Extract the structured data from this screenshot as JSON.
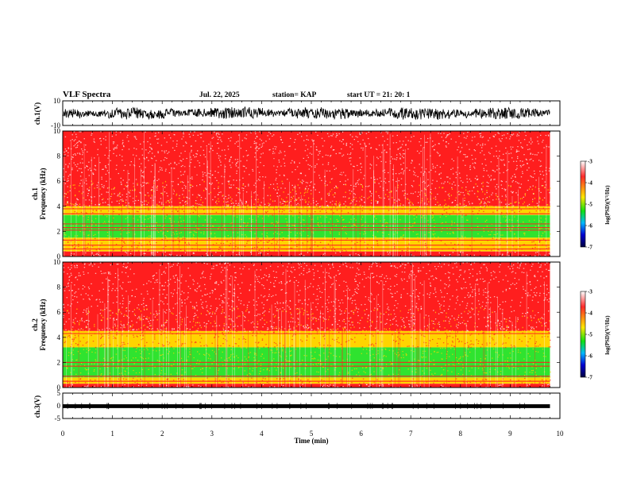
{
  "header": {
    "title": "VLF Spectra",
    "date": "Jul. 22, 2025",
    "station": "station= KAP",
    "start_ut": "start UT =  21: 20: 1"
  },
  "colors": {
    "spec_hi": "#ff1e1e",
    "spec_mid": "#ffd400",
    "spec_lo": "#2fe32f",
    "trace": "#000000",
    "frame": "#000000",
    "colorbar_stops": [
      "#ffffff",
      "#ff0000",
      "#ffee00",
      "#00e000",
      "#00c0ff",
      "#0000d0",
      "#000050"
    ]
  },
  "chart_data": [
    {
      "type": "line",
      "name": "ch1-waveform",
      "ylabel": "ch.1(V)",
      "ylim": [
        -10,
        10
      ],
      "yticks": [
        10,
        -10
      ],
      "xlim": [
        0,
        10
      ],
      "description_values": "noisy waveform between about -8 V and +8 V, ending near 9.8 min"
    },
    {
      "type": "heatmap",
      "name": "ch1-spectrogram",
      "ylabel_line1": "ch.1",
      "ylabel_line2": "Frequency (kHz)",
      "ylim": [
        0,
        10
      ],
      "yticks": [
        0,
        2,
        4,
        6,
        8,
        10
      ],
      "xlim": [
        0,
        10
      ],
      "data_end_min": 9.8,
      "bands_khz": [
        {
          "from": 4.0,
          "to": 10.0,
          "level": "high"
        },
        {
          "from": 3.3,
          "to": 4.0,
          "level": "mid"
        },
        {
          "from": 1.5,
          "to": 3.3,
          "level": "low"
        },
        {
          "from": 0.4,
          "to": 1.5,
          "level": "mid"
        },
        {
          "from": 0.0,
          "to": 0.4,
          "level": "high"
        }
      ],
      "lines_khz": [
        3.8,
        3.4,
        2.6,
        2.3,
        2.1,
        1.3,
        0.9,
        0.6
      ],
      "colorbar": {
        "label": "log(PSD)(V²/Hz)",
        "range": [
          -7,
          -3
        ],
        "ticks": [
          -3,
          -4,
          -5,
          -6,
          -7
        ]
      }
    },
    {
      "type": "heatmap",
      "name": "ch2-spectrogram",
      "ylabel_line1": "ch.2",
      "ylabel_line2": "Frequency (kHz)",
      "ylim": [
        0,
        10
      ],
      "yticks": [
        0,
        2,
        4,
        6,
        8,
        10
      ],
      "xlim": [
        0,
        10
      ],
      "data_end_min": 9.8,
      "bands_khz": [
        {
          "from": 4.5,
          "to": 10.0,
          "level": "high"
        },
        {
          "from": 3.2,
          "to": 4.5,
          "level": "mid"
        },
        {
          "from": 0.8,
          "to": 3.2,
          "level": "low"
        },
        {
          "from": 0.3,
          "to": 0.8,
          "level": "mid"
        },
        {
          "from": 0.0,
          "to": 0.3,
          "level": "high"
        }
      ],
      "lines_khz": [
        4.3,
        2.0,
        1.7,
        0.9,
        0.5
      ],
      "colorbar": {
        "label": "log(PSD)(V²/Hz)",
        "range": [
          -7,
          -3
        ],
        "ticks": [
          -3,
          -4,
          -5,
          -6,
          -7
        ]
      }
    },
    {
      "type": "line",
      "name": "ch3-waveform",
      "ylabel": "ch.3(V)",
      "ylim": [
        -5,
        5
      ],
      "yticks": [
        5,
        0,
        -5
      ],
      "xlim": [
        0,
        10
      ],
      "xlabel": "Time (min)",
      "xticks": [
        0,
        1,
        2,
        3,
        4,
        5,
        6,
        7,
        8,
        9,
        10
      ],
      "description_values": "nearly constant thick trace around 0 V, ending near 9.8 min"
    }
  ]
}
